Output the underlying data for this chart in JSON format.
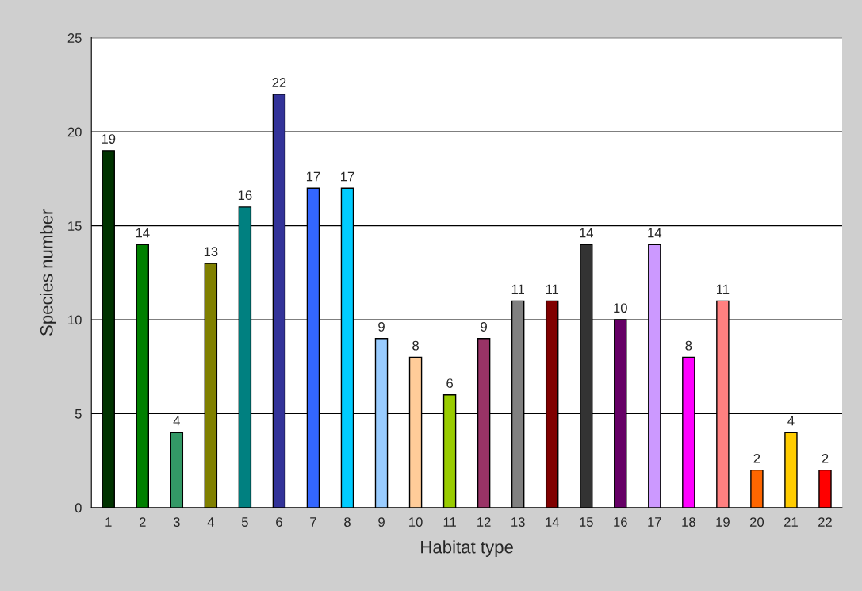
{
  "chart_data": {
    "type": "bar",
    "xlabel": "Habitat type",
    "ylabel": "Species number",
    "categories": [
      "1",
      "2",
      "3",
      "4",
      "5",
      "6",
      "7",
      "8",
      "9",
      "10",
      "11",
      "12",
      "13",
      "14",
      "15",
      "16",
      "17",
      "18",
      "19",
      "20",
      "21",
      "22"
    ],
    "values": [
      19,
      14,
      4,
      13,
      16,
      22,
      17,
      17,
      9,
      8,
      6,
      9,
      11,
      11,
      14,
      10,
      14,
      8,
      11,
      2,
      4,
      2
    ],
    "colors": [
      "#003300",
      "#008000",
      "#339966",
      "#808000",
      "#008080",
      "#333399",
      "#3366ff",
      "#00ccff",
      "#99ccff",
      "#ffcc99",
      "#99cc00",
      "#993366",
      "#808080",
      "#800000",
      "#333333",
      "#660066",
      "#cc99ff",
      "#ff00ff",
      "#ff8080",
      "#ff6600",
      "#ffcc00",
      "#ff0000"
    ],
    "ylim": [
      0,
      25
    ],
    "yticks": [
      0,
      5,
      10,
      15,
      20,
      25
    ],
    "grid": "y",
    "data_labels": true
  }
}
